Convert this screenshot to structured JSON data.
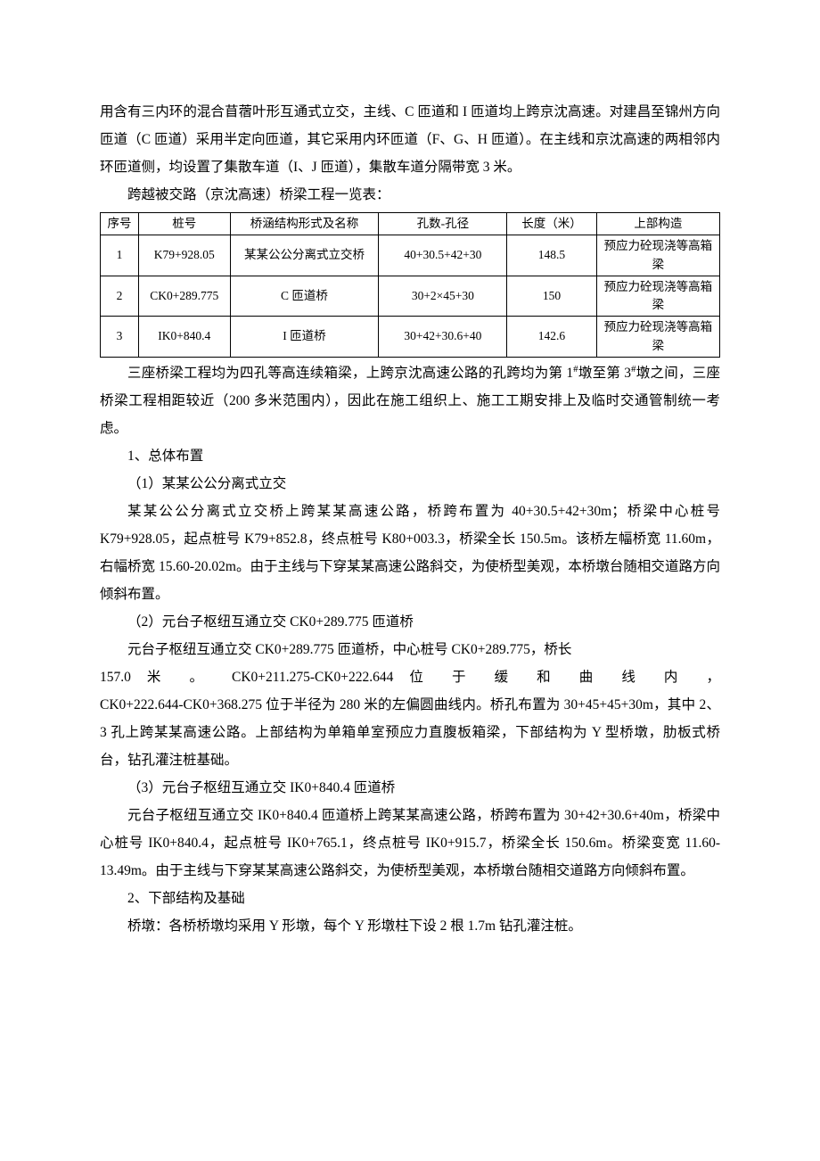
{
  "paragraphs": {
    "p1": "用含有三内环的混合苜蓿叶形互通式立交，主线、C 匝道和 I 匝道均上跨京沈高速。对建昌至锦州方向匝道（C 匝道）采用半定向匝道，其它采用内环匝道（F、G、H 匝道）。在主线和京沈高速的两相邻内环匝道侧，均设置了集散车道（I、J 匝道），集散车道分隔带宽 3 米。",
    "p2": "跨越被交路（京沈高速）桥梁工程一览表：",
    "p3_a": "三座桥梁工程均为四孔等高连续箱梁，上跨京沈高速公路的孔跨均为第 1",
    "p3_b": "墩至第 3",
    "p3_c": "墩之间，三座桥梁工程相距较近（200 多米范围内），因此在施工组织上、施工工期安排上及临时交通管制统一考虑。",
    "p4": "1、总体布置",
    "p5": "（1）某某公公分离式立交",
    "p6": "某某公公分离式立交桥上跨某某高速公路，桥跨布置为 40+30.5+42+30m；桥梁中心桩号 K79+928.05，起点桩号 K79+852.8，终点桩号 K80+003.3，桥梁全长 150.5m。该桥左幅桥宽 11.60m，右幅桥宽 15.60-20.02m。由于主线与下穿某某高速公路斜交，为使桥型美观，本桥墩台随相交道路方向倾斜布置。",
    "p7": "（2）元台子枢纽互通立交 CK0+289.775 匝道桥",
    "p8a": "元台子枢纽互通立交 CK0+289.775 匝道桥，中心桩号 CK0+289.775，桥长",
    "p8b": "157.0 米 。 CK0+211.275-CK0+222.644 位 于 缓 和 曲 线 内 ，",
    "p8c": "CK0+222.644-CK0+368.275 位于半径为 280 米的左偏圆曲线内。桥孔布置为 30+45+45+30m，其中 2、3 孔上跨某某高速公路。上部结构为单箱单室预应力直腹板箱梁，下部结构为 Y 型桥墩，肋板式桥台，钻孔灌注桩基础。",
    "p9": "（3）元台子枢纽互通立交 IK0+840.4 匝道桥",
    "p10": "元台子枢纽互通立交 IK0+840.4 匝道桥上跨某某高速公路，桥跨布置为 30+42+30.6+40m，桥梁中心桩号 IK0+840.4，起点桩号 IK0+765.1，终点桩号 IK0+915.7，桥梁全长 150.6m。桥梁变宽 11.60-13.49m。由于主线与下穿某某高速公路斜交，为使桥型美观，本桥墩台随相交道路方向倾斜布置。",
    "p11": "2、下部结构及基础",
    "p12": "桥墩：各桥桥墩均采用 Y 形墩，每个 Y 形墩柱下设 2 根 1.7m 钻孔灌注桩。"
  },
  "table": {
    "headers": {
      "seq": "序号",
      "stake": "桩号",
      "form": "桥涵结构形式及名称",
      "span": "孔数-孔径",
      "length": "长度（米）",
      "structure": "上部构造"
    },
    "rows": [
      {
        "seq": "1",
        "stake": "K79+928.05",
        "form": "某某公公分离式立交桥",
        "span": "40+30.5+42+30",
        "length": "148.5",
        "structure": "预应力砼现浇等高箱梁"
      },
      {
        "seq": "2",
        "stake": "CK0+289.775",
        "form": "C 匝道桥",
        "span": "30+2×45+30",
        "length": "150",
        "structure": "预应力砼现浇等高箱梁"
      },
      {
        "seq": "3",
        "stake": "IK0+840.4",
        "form": "I 匝道桥",
        "span": "30+42+30.6+40",
        "length": "142.6",
        "structure": "预应力砼现浇等高箱梁"
      }
    ]
  },
  "hash": "#"
}
